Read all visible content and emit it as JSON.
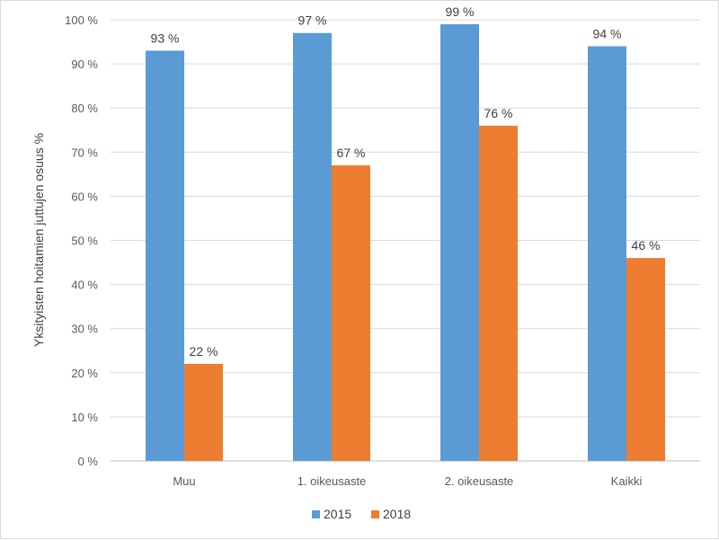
{
  "chart_data": {
    "type": "bar",
    "categories": [
      "Muu",
      "1. oikeusaste",
      "2. oikeusaste",
      "Kaikki"
    ],
    "series": [
      {
        "name": "2015",
        "values": [
          93,
          97,
          99,
          94
        ],
        "labels": [
          "93 %",
          "97 %",
          "99 %",
          "94 %"
        ],
        "color": "#5b9bd5"
      },
      {
        "name": "2018",
        "values": [
          22,
          67,
          76,
          46
        ],
        "labels": [
          "22 %",
          "67 %",
          "76 %",
          "46 %"
        ],
        "color": "#ed7d31"
      }
    ],
    "ylabel": "Yksityisten hoitamien juttujen osuus %",
    "ylim": [
      0,
      100
    ],
    "yticks": [
      0,
      10,
      20,
      30,
      40,
      50,
      60,
      70,
      80,
      90,
      100
    ],
    "ytick_labels": [
      "0 %",
      "10 %",
      "20 %",
      "30 %",
      "40 %",
      "50 %",
      "60 %",
      "70 %",
      "80 %",
      "90 %",
      "100 %"
    ],
    "grid": true,
    "legend": "bottom-center"
  }
}
